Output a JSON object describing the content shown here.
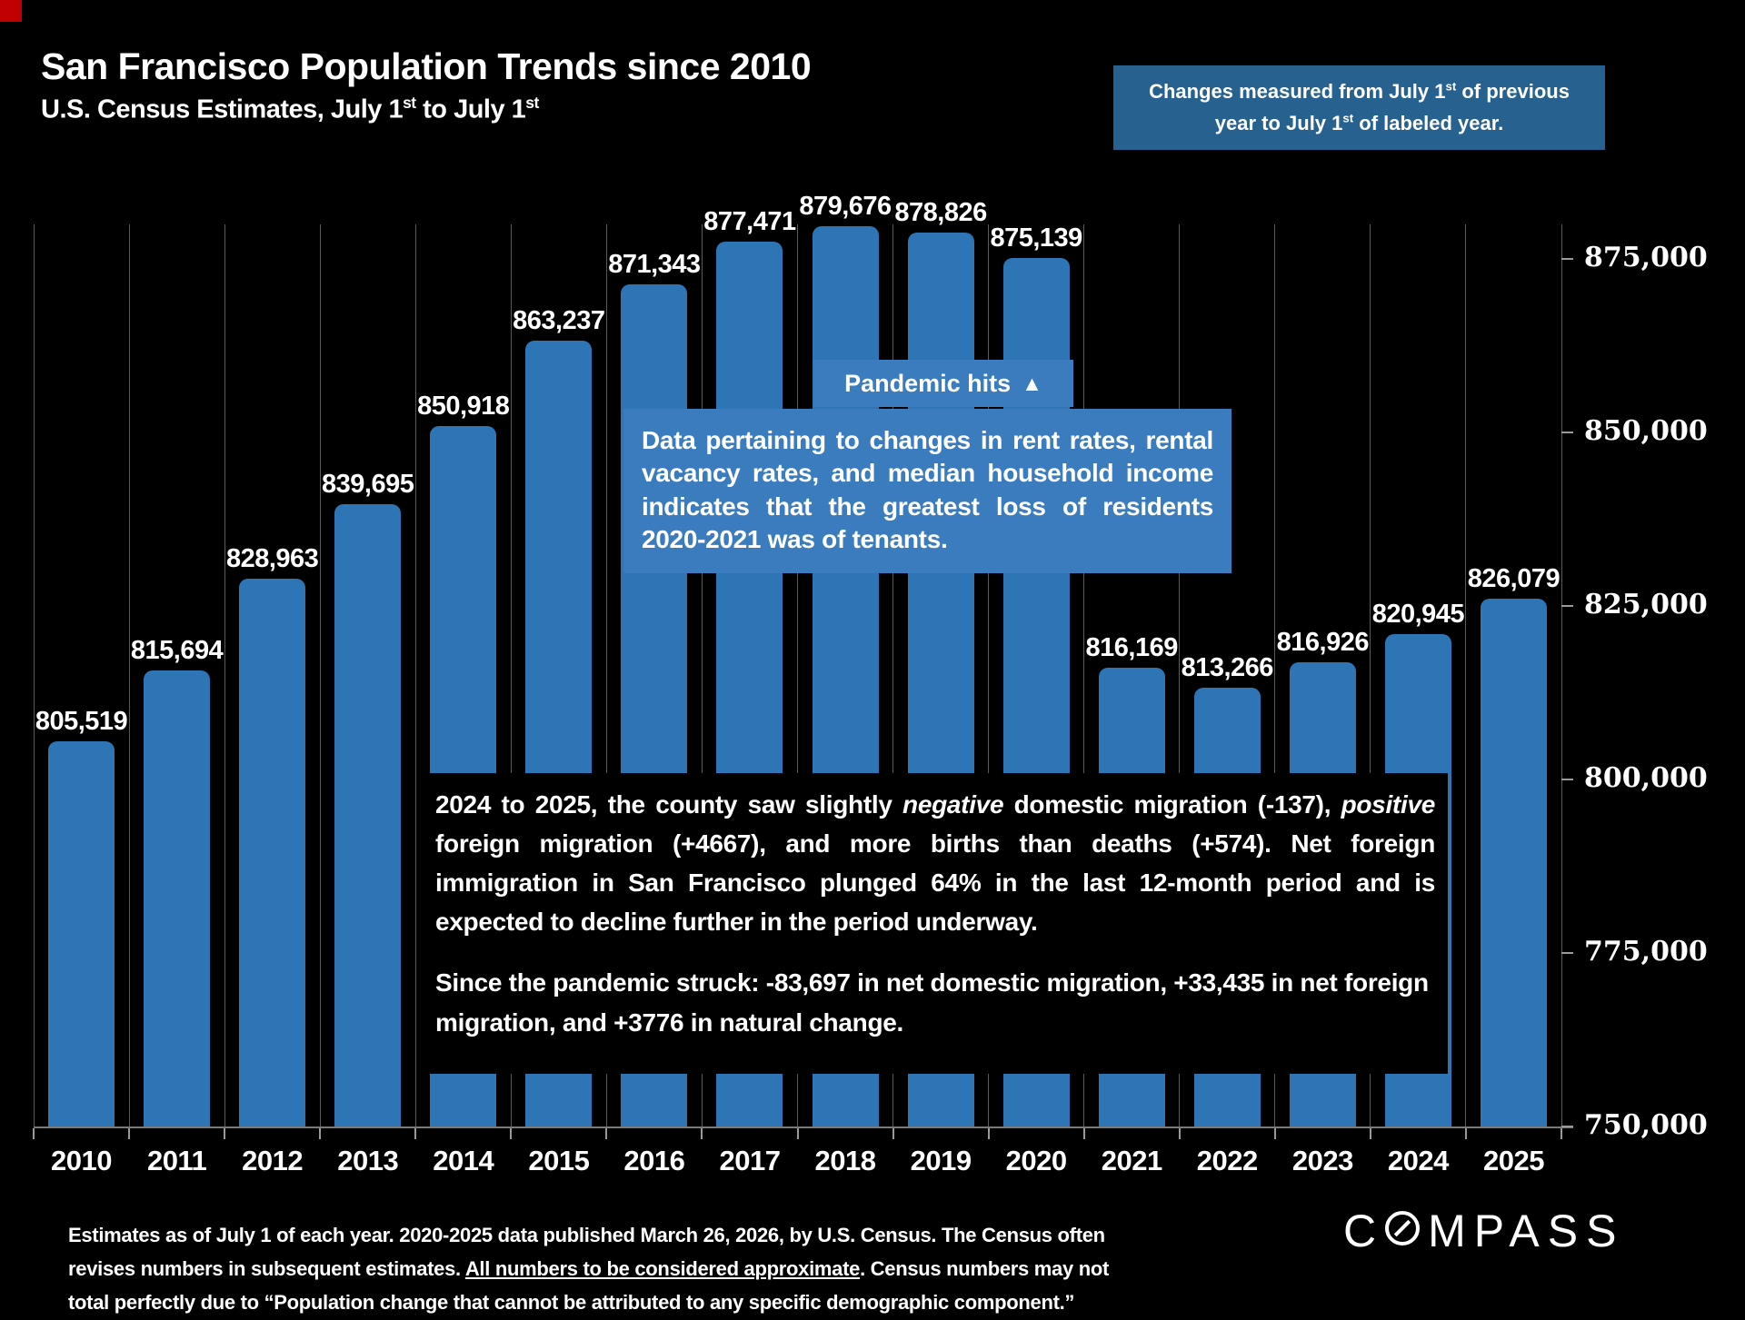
{
  "header": {
    "title": "San Francisco Population Trends since 2010",
    "subtitle_parts": [
      "U.S. Census Estimates, July 1",
      "st",
      " to July 1",
      "st"
    ],
    "note_parts": [
      "Changes measured from July 1",
      "st",
      " of previous year to July 1",
      "st",
      " of labeled year."
    ]
  },
  "chart_data": {
    "type": "bar",
    "title": "San Francisco Population Trends since 2010",
    "categories": [
      "2010",
      "2011",
      "2012",
      "2013",
      "2014",
      "2015",
      "2016",
      "2017",
      "2018",
      "2019",
      "2020",
      "2021",
      "2022",
      "2023",
      "2024",
      "2025"
    ],
    "values": [
      805519,
      815694,
      828963,
      839695,
      850918,
      863237,
      871343,
      877471,
      879676,
      878826,
      875139,
      816169,
      813266,
      816926,
      820945,
      826079
    ],
    "yticks": [
      875000,
      850000,
      825000,
      800000,
      775000,
      750000
    ],
    "ylim": [
      750000,
      880000
    ],
    "xlabel": "",
    "ylabel": "",
    "grid": "vertical",
    "legend": "none",
    "bar_color": "#2e75b6"
  },
  "annotations": {
    "pandemic": {
      "label": "Pandemic hits",
      "icon": "▲"
    },
    "tenant_box": "Data pertaining to changes in rent rates, rental vacancy rates, and median household income indicates that the greatest loss of residents 2020-2021 was of tenants.",
    "migration_box": {
      "p1_parts": [
        "2024 to 2025, the county saw slightly ",
        "negative",
        " domestic migration (-137), ",
        "positive",
        " foreign migration (+4667), and more births than deaths (+574). Net foreign immigration in San Francisco plunged 64% in the last 12-month period and is expected to decline further in the period underway."
      ],
      "p2": "Since the pandemic struck: -83,697 in net domestic migration, +33,435 in net foreign migration, and +3776 in natural change."
    }
  },
  "footer": {
    "parts": [
      "Estimates as of July 1 of each year. 2020-2025 data published March 26, 2026, by U.S. Census. The Census often revises numbers in subsequent estimates. ",
      "All numbers to be considered approximate",
      ". Census numbers may not total perfectly due to “Population change that cannot be attributed to any specific demographic component.”"
    ]
  },
  "logo": {
    "parts": [
      "C",
      "MPASS"
    ]
  },
  "colors": {
    "background": "#000000",
    "bar": "#2e75b6",
    "callout_box": "#3a7cbe",
    "note_box": "#26618f",
    "gridline": "#5a5a5a"
  }
}
